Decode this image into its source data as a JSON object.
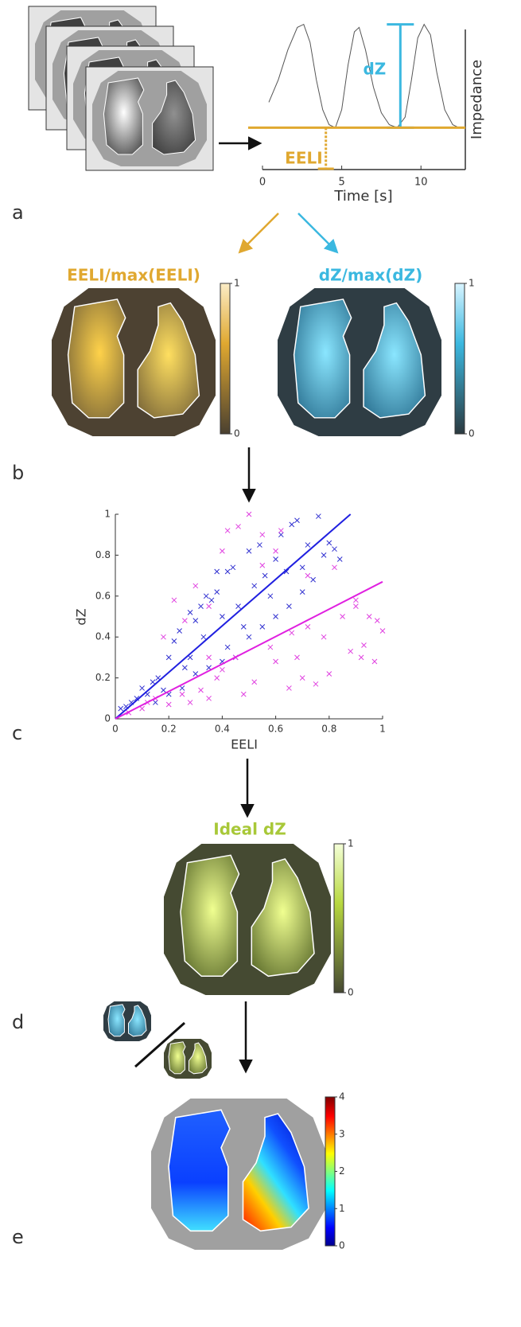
{
  "panel_labels": [
    "a",
    "b",
    "c",
    "d",
    "e"
  ],
  "chart_data": [
    {
      "type": "line",
      "xlabel": "Time [s]",
      "ylabel": "Impedance",
      "color": "#555555",
      "xlim": [
        0,
        12.8
      ],
      "xticks": [
        0,
        5,
        10
      ],
      "ylim": [
        0,
        1
      ],
      "x": [
        0.4,
        1.0,
        1.6,
        2.2,
        2.6,
        3.0,
        3.4,
        3.8,
        4.2,
        4.6,
        5.0,
        5.4,
        5.8,
        6.1,
        6.5,
        7.0,
        7.5,
        8.0,
        8.5,
        9.0,
        9.4,
        9.8,
        10.2,
        10.6,
        11.0,
        11.5,
        12.0,
        12.4
      ],
      "values": [
        0.45,
        0.6,
        0.8,
        0.95,
        0.97,
        0.85,
        0.6,
        0.4,
        0.3,
        0.28,
        0.4,
        0.7,
        0.92,
        0.95,
        0.8,
        0.55,
        0.38,
        0.3,
        0.28,
        0.35,
        0.6,
        0.88,
        0.97,
        0.9,
        0.65,
        0.4,
        0.3,
        0.28
      ],
      "annotations": [
        {
          "label": "dZ",
          "color": "#3bb8e0",
          "x": 8.7,
          "from": 0.28,
          "to": 0.97
        },
        {
          "label": "EELI",
          "color": "#e0a830",
          "x": 4.0,
          "from": 0,
          "to": 0.28
        }
      ]
    },
    {
      "type": "scatter",
      "xlabel": "EELI",
      "ylabel": "dZ",
      "xlim": [
        0,
        1
      ],
      "ylim": [
        0,
        1
      ],
      "xticks": [
        0,
        0.2,
        0.4,
        0.6,
        0.8,
        1
      ],
      "yticks": [
        0,
        0.2,
        0.4,
        0.6,
        0.8,
        1
      ],
      "series": [
        {
          "color": "#3030d0",
          "x": [
            0.02,
            0.04,
            0.06,
            0.08,
            0.1,
            0.12,
            0.14,
            0.16,
            0.18,
            0.2,
            0.22,
            0.24,
            0.26,
            0.28,
            0.3,
            0.32,
            0.34,
            0.36,
            0.38,
            0.4,
            0.42,
            0.44,
            0.46,
            0.48,
            0.5,
            0.52,
            0.54,
            0.56,
            0.58,
            0.6,
            0.62,
            0.64,
            0.66,
            0.68,
            0.7,
            0.72,
            0.74,
            0.76,
            0.78,
            0.8,
            0.82,
            0.84,
            0.45,
            0.4,
            0.35,
            0.3,
            0.25,
            0.5,
            0.55,
            0.6,
            0.65,
            0.38,
            0.28,
            0.33,
            0.15,
            0.2,
            0.42,
            0.7
          ],
          "values": [
            0.05,
            0.06,
            0.08,
            0.1,
            0.15,
            0.12,
            0.18,
            0.2,
            0.14,
            0.3,
            0.38,
            0.43,
            0.25,
            0.3,
            0.48,
            0.55,
            0.6,
            0.58,
            0.62,
            0.5,
            0.72,
            0.74,
            0.55,
            0.45,
            0.82,
            0.65,
            0.85,
            0.7,
            0.6,
            0.78,
            0.9,
            0.72,
            0.95,
            0.97,
            0.74,
            0.85,
            0.68,
            0.99,
            0.8,
            0.86,
            0.83,
            0.78,
            0.3,
            0.28,
            0.25,
            0.22,
            0.15,
            0.4,
            0.45,
            0.5,
            0.55,
            0.72,
            0.52,
            0.4,
            0.08,
            0.12,
            0.35,
            0.62
          ]
        },
        {
          "color": "#e040e0",
          "x": [
            0.05,
            0.1,
            0.15,
            0.2,
            0.25,
            0.28,
            0.3,
            0.32,
            0.35,
            0.38,
            0.4,
            0.42,
            0.45,
            0.48,
            0.5,
            0.52,
            0.55,
            0.58,
            0.6,
            0.62,
            0.65,
            0.68,
            0.7,
            0.72,
            0.75,
            0.78,
            0.8,
            0.82,
            0.85,
            0.88,
            0.9,
            0.92,
            0.95,
            0.97,
            1.0,
            0.22,
            0.18,
            0.26,
            0.35,
            0.4,
            0.46,
            0.55,
            0.6,
            0.66,
            0.72,
            0.9,
            0.93,
            0.98,
            0.12,
            0.35
          ],
          "values": [
            0.03,
            0.05,
            0.1,
            0.07,
            0.12,
            0.08,
            0.65,
            0.14,
            0.1,
            0.2,
            0.24,
            0.92,
            0.3,
            0.12,
            1.0,
            0.18,
            0.9,
            0.35,
            0.28,
            0.92,
            0.15,
            0.3,
            0.2,
            0.45,
            0.17,
            0.4,
            0.22,
            0.74,
            0.5,
            0.33,
            0.58,
            0.3,
            0.5,
            0.28,
            0.43,
            0.58,
            0.4,
            0.48,
            0.55,
            0.82,
            0.94,
            0.75,
            0.82,
            0.42,
            0.7,
            0.55,
            0.36,
            0.48,
            0.08,
            0.3
          ]
        }
      ],
      "fit_lines": [
        {
          "color": "#2020e0",
          "x": [
            0,
            0.88
          ],
          "values": [
            0,
            1
          ]
        },
        {
          "color": "#e020e0",
          "x": [
            0,
            1
          ],
          "values": [
            0,
            0.67
          ]
        }
      ]
    }
  ],
  "maps": [
    {
      "title": "EELI/max(EELI)",
      "title_color": "#e0a830",
      "colorbar": {
        "lim": [
          0,
          1
        ],
        "ticks": [
          0,
          1
        ]
      }
    },
    {
      "title": "dZ/max(dZ)",
      "title_color": "#3bb8e0",
      "colorbar": {
        "lim": [
          0,
          1
        ],
        "ticks": [
          0,
          1
        ]
      }
    },
    {
      "title": "Ideal dZ",
      "title_color": "#a8c838",
      "colorbar": {
        "lim": [
          0,
          1
        ],
        "ticks": [
          0,
          1
        ]
      }
    },
    {
      "colorbar": {
        "lim": [
          0,
          4
        ],
        "ticks": [
          0,
          1,
          2,
          3,
          4
        ]
      }
    }
  ]
}
